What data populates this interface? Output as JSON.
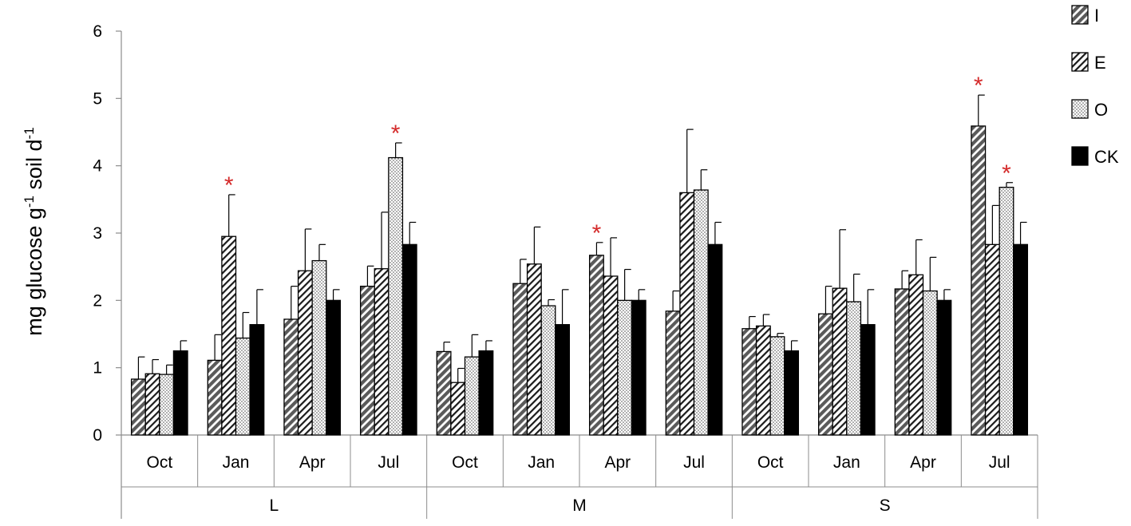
{
  "chart_data": {
    "type": "bar",
    "ylabel": {
      "base1": "mg glucose  g",
      "sup1": "-1",
      "base2": " soil  d",
      "sup2": "-1"
    },
    "ylim": [
      0,
      6
    ],
    "yticks": [
      "0",
      "1",
      "2",
      "3",
      "4",
      "5",
      "6"
    ],
    "groups": [
      "L",
      "M",
      "S"
    ],
    "categories": [
      "Oct",
      "Jan",
      "Apr",
      "Jul"
    ],
    "legend_position": "top-right",
    "series": [
      {
        "name": "I",
        "pattern": "hatch-dark",
        "values": [
          [
            0.83,
            1.11,
            1.72,
            2.21
          ],
          [
            1.24,
            2.25,
            2.67,
            1.84
          ],
          [
            1.58,
            1.8,
            2.17,
            4.59
          ]
        ],
        "errors": [
          [
            0.33,
            0.38,
            0.49,
            0.3
          ],
          [
            0.14,
            0.36,
            0.19,
            0.3
          ],
          [
            0.18,
            0.41,
            0.27,
            0.46
          ]
        ]
      },
      {
        "name": "E",
        "pattern": "hatch-light",
        "values": [
          [
            0.91,
            2.95,
            2.44,
            2.47
          ],
          [
            0.78,
            2.54,
            2.36,
            3.6
          ],
          [
            1.62,
            2.18,
            2.38,
            2.83
          ]
        ],
        "errors": [
          [
            0.21,
            0.62,
            0.62,
            0.84
          ],
          [
            0.21,
            0.55,
            0.57,
            0.94
          ],
          [
            0.17,
            0.87,
            0.52,
            0.58
          ]
        ]
      },
      {
        "name": "O",
        "pattern": "dotted",
        "values": [
          [
            0.9,
            1.44,
            2.59,
            4.12
          ],
          [
            1.16,
            1.92,
            2.0,
            3.64
          ],
          [
            1.46,
            1.98,
            2.14,
            3.68
          ]
        ],
        "errors": [
          [
            0.14,
            0.38,
            0.24,
            0.22
          ],
          [
            0.33,
            0.09,
            0.46,
            0.3
          ],
          [
            0.05,
            0.41,
            0.5,
            0.07
          ]
        ]
      },
      {
        "name": "CK",
        "pattern": "solid-black",
        "values": [
          [
            1.25,
            1.64,
            2.0,
            2.83
          ],
          [
            1.25,
            1.64,
            2.0,
            2.83
          ],
          [
            1.25,
            1.64,
            2.0,
            2.83
          ]
        ],
        "errors": [
          [
            0.15,
            0.52,
            0.16,
            0.33
          ],
          [
            0.15,
            0.52,
            0.16,
            0.33
          ],
          [
            0.15,
            0.52,
            0.16,
            0.33
          ]
        ]
      }
    ],
    "annotations": [
      {
        "text": "*",
        "group": 0,
        "category": 1,
        "series": 1
      },
      {
        "text": "*",
        "group": 0,
        "category": 3,
        "series": 2
      },
      {
        "text": "*",
        "group": 1,
        "category": 2,
        "series": 0
      },
      {
        "text": "*",
        "group": 2,
        "category": 3,
        "series": 0
      },
      {
        "text": "*",
        "group": 2,
        "category": 3,
        "series": 2
      }
    ],
    "colors": {
      "star": "#d42a2a",
      "axis": "#8c8c8c",
      "bar_edge": "#000000",
      "dark_fill": "#6b6b6b",
      "black_fill": "#000000"
    }
  }
}
